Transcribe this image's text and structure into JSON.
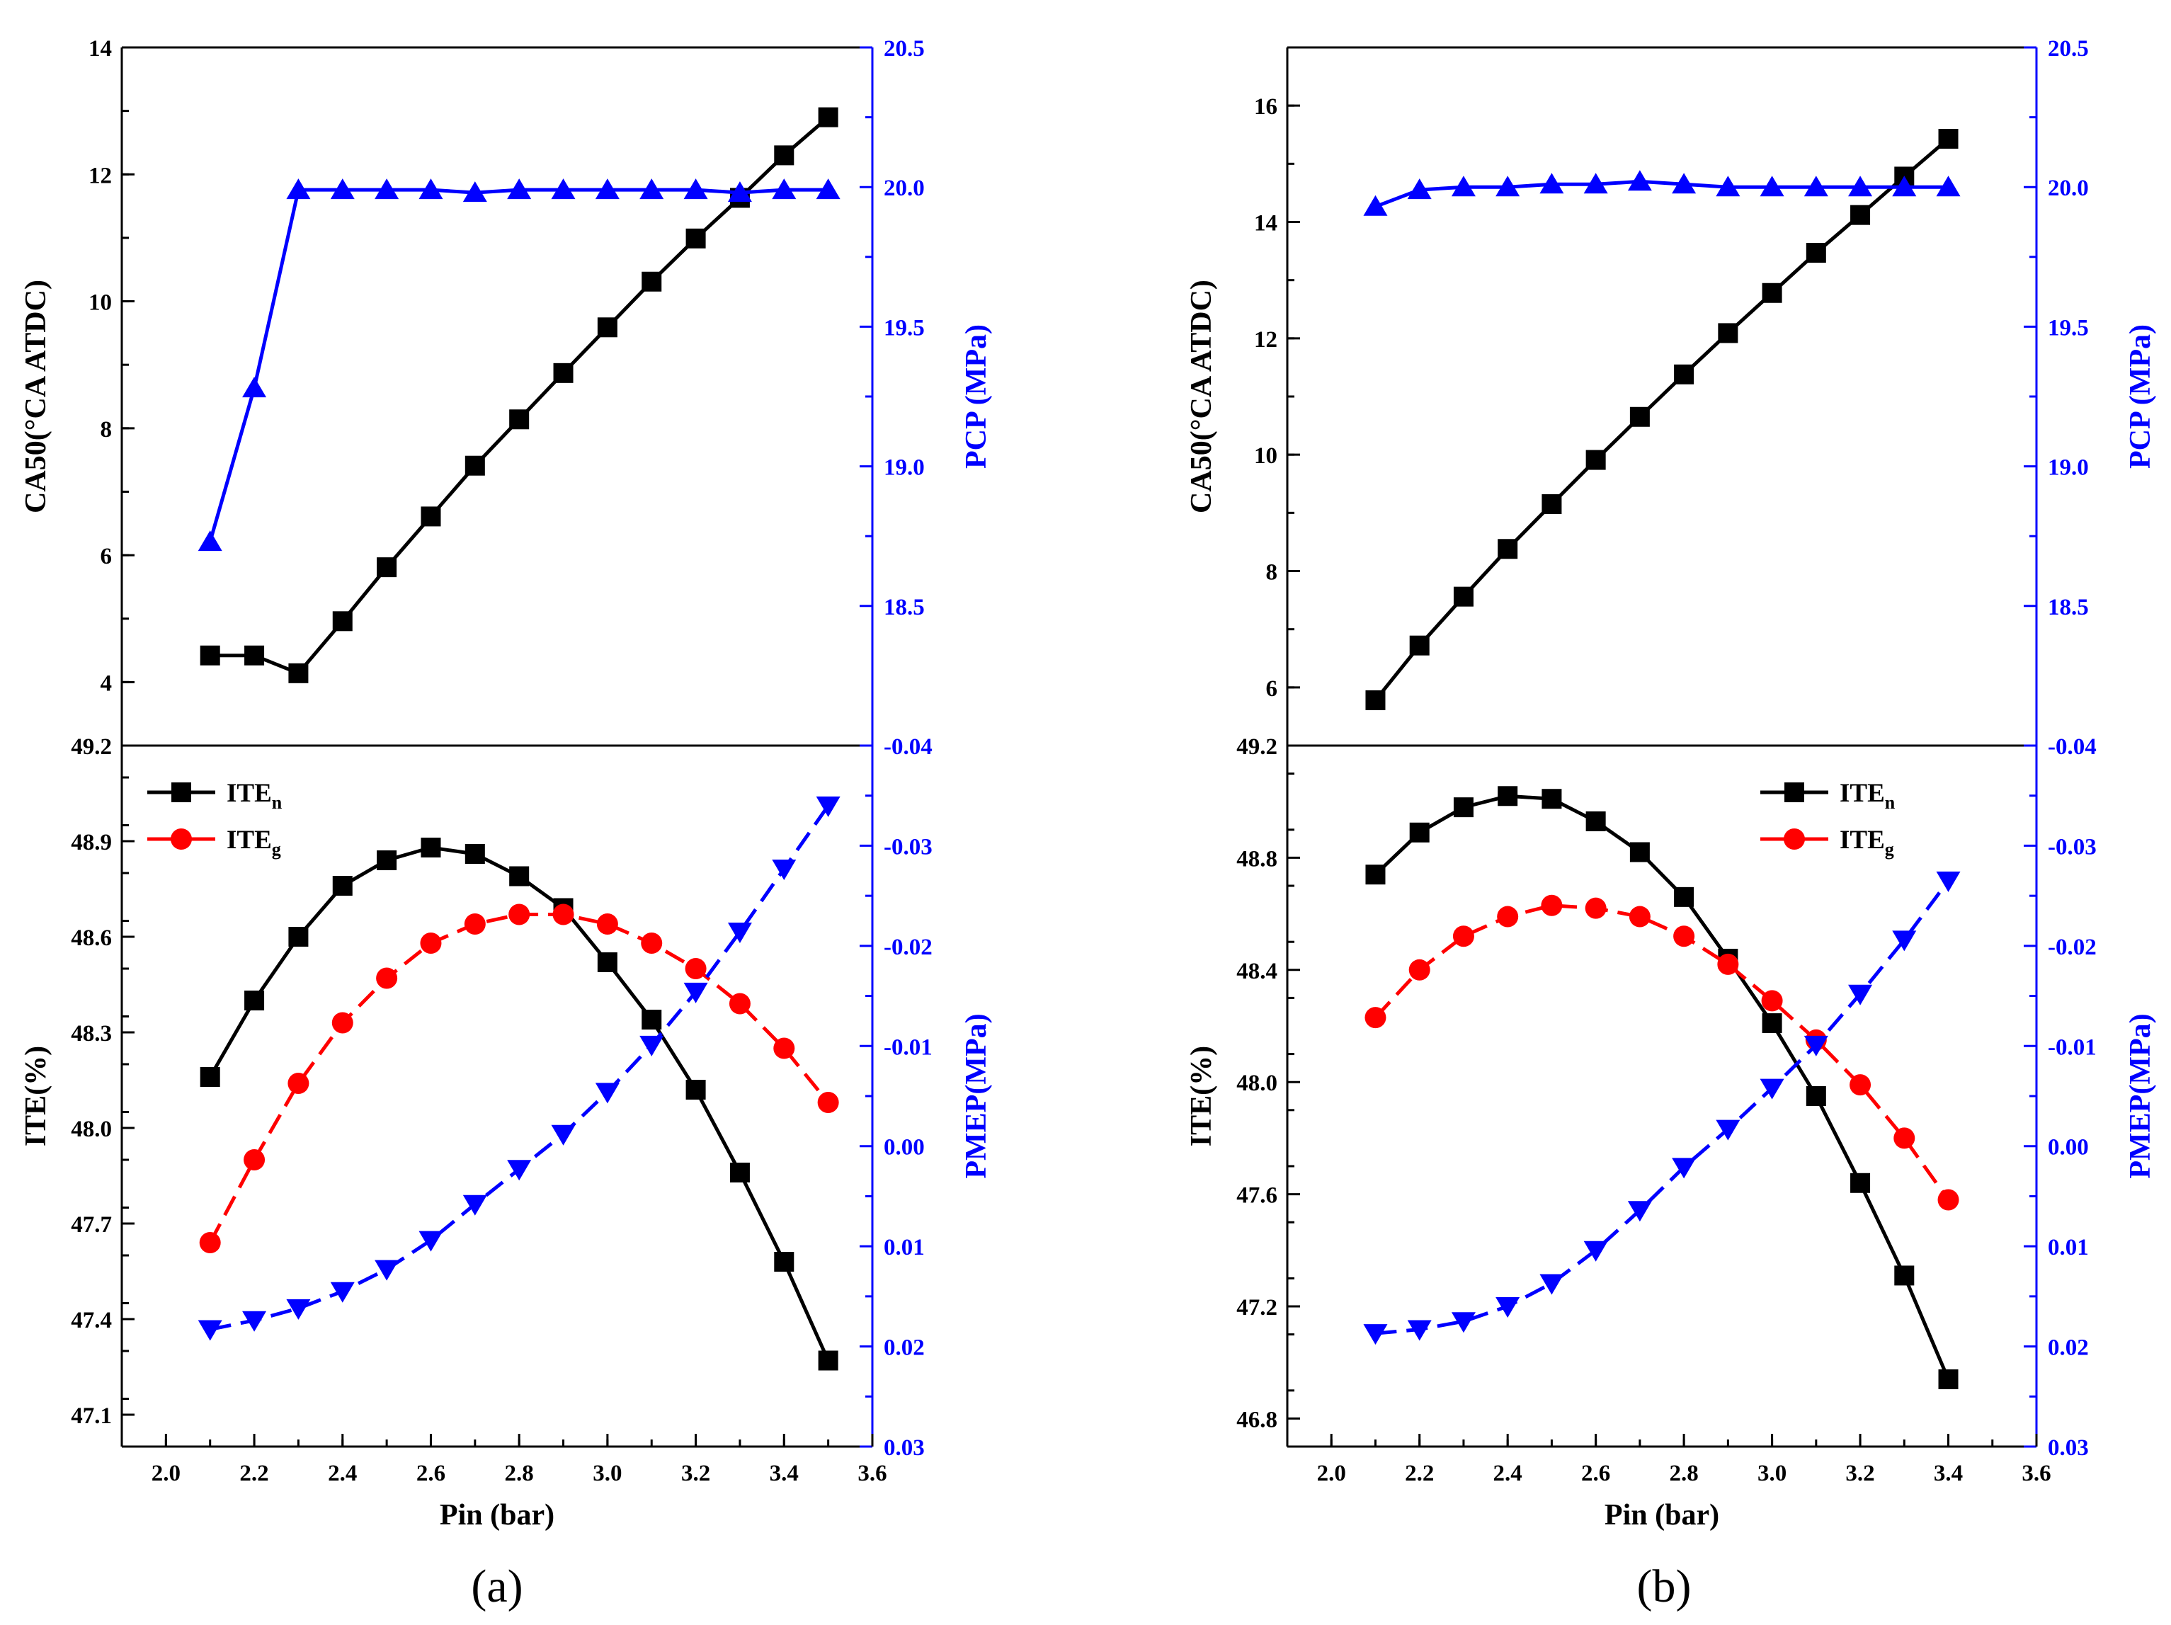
{
  "colors": {
    "black": "#000000",
    "red": "#ff0000",
    "blue": "#0000ff"
  },
  "chart_data": [
    {
      "panel": "a",
      "panel_label": "(a)",
      "type": "line",
      "xlabel": "Pin (bar)",
      "xlim": [
        1.9,
        3.6
      ],
      "xticks": [
        2.0,
        2.2,
        2.4,
        2.6,
        2.8,
        3.0,
        3.2,
        3.4,
        3.6
      ],
      "xtick_labels": [
        "2.0",
        "2.2",
        "2.4",
        "2.6",
        "2.8",
        "3.0",
        "3.2",
        "3.4",
        "3.6"
      ],
      "top": {
        "ylabel_left": "CA50(°CA ATDC)",
        "ylabel_right": "PCP (MPa)",
        "ylim_left": [
          3,
          14
        ],
        "yticks_left": [
          4,
          6,
          8,
          10,
          12,
          14
        ],
        "ytick_labels_left": [
          "4",
          "6",
          "8",
          "10",
          "12",
          "14"
        ],
        "ylim_right": [
          18.0,
          20.5
        ],
        "yticks_right": [
          18.5,
          19.0,
          19.5,
          20.0,
          20.5
        ],
        "ytick_labels_right": [
          "18.5",
          "19.0",
          "19.5",
          "20.0",
          "20.5"
        ],
        "series": [
          {
            "name": "CA50",
            "axis": "left",
            "color": "#000000",
            "marker": "square",
            "dash": "",
            "x": [
              2.1,
              2.2,
              2.3,
              2.4,
              2.5,
              2.6,
              2.7,
              2.8,
              2.9,
              3.0,
              3.1,
              3.2,
              3.3,
              3.4,
              3.5
            ],
            "y": [
              4.42,
              4.42,
              4.14,
              4.96,
              5.81,
              6.61,
              7.41,
              8.14,
              8.87,
              9.59,
              10.31,
              10.99,
              11.63,
              12.3,
              12.9
            ]
          },
          {
            "name": "PCP",
            "axis": "right",
            "color": "#0000ff",
            "marker": "triangle-up",
            "dash": "",
            "x": [
              2.1,
              2.2,
              2.3,
              2.4,
              2.5,
              2.6,
              2.7,
              2.8,
              2.9,
              3.0,
              3.1,
              3.2,
              3.3,
              3.4,
              3.5
            ],
            "y": [
              18.73,
              19.28,
              19.99,
              19.99,
              19.99,
              19.99,
              19.98,
              19.99,
              19.99,
              19.99,
              19.99,
              19.99,
              19.98,
              19.99,
              19.99
            ]
          }
        ]
      },
      "bottom": {
        "ylabel_left": "ITE(%)",
        "ylabel_right": "PMEP(MPa)",
        "ylim_left": [
          47.0,
          49.2
        ],
        "yticks_left": [
          47.1,
          47.4,
          47.7,
          48.0,
          48.3,
          48.6,
          48.9,
          49.2
        ],
        "ytick_labels_left": [
          "47.1",
          "47.4",
          "47.7",
          "48.0",
          "48.3",
          "48.6",
          "48.9",
          "49.2"
        ],
        "ylim_right": [
          0.03,
          -0.04
        ],
        "yticks_right": [
          0.03,
          0.02,
          0.01,
          0.0,
          -0.01,
          -0.02,
          -0.03,
          -0.04
        ],
        "ytick_labels_right": [
          "0.03",
          "0.02",
          "0.01",
          "0.00",
          "-0.01",
          "-0.02",
          "-0.03",
          "-0.04"
        ],
        "legend": [
          {
            "label": "ITE",
            "sub": "n",
            "color": "#000000",
            "marker": "square"
          },
          {
            "label": "ITE",
            "sub": "g",
            "color": "#ff0000",
            "marker": "circle"
          }
        ],
        "legend_position": "top-left",
        "series": [
          {
            "name": "ITEn",
            "axis": "left",
            "color": "#000000",
            "marker": "square",
            "dash": "",
            "x": [
              2.1,
              2.2,
              2.3,
              2.4,
              2.5,
              2.6,
              2.7,
              2.8,
              2.9,
              3.0,
              3.1,
              3.2,
              3.3,
              3.4,
              3.5
            ],
            "y": [
              48.16,
              48.4,
              48.6,
              48.76,
              48.84,
              48.88,
              48.86,
              48.79,
              48.69,
              48.52,
              48.34,
              48.12,
              47.86,
              47.58,
              47.27
            ]
          },
          {
            "name": "ITEg",
            "axis": "left",
            "color": "#ff0000",
            "marker": "circle",
            "dash": "30,14",
            "x": [
              2.1,
              2.2,
              2.3,
              2.4,
              2.5,
              2.6,
              2.7,
              2.8,
              2.9,
              3.0,
              3.1,
              3.2,
              3.3,
              3.4,
              3.5
            ],
            "y": [
              47.64,
              47.9,
              48.14,
              48.33,
              48.47,
              48.58,
              48.64,
              48.67,
              48.67,
              48.64,
              48.58,
              48.5,
              48.39,
              48.25,
              48.08
            ]
          },
          {
            "name": "PMEP",
            "axis": "right",
            "color": "#0000ff",
            "marker": "triangle-down",
            "dash": "30,14",
            "x": [
              2.1,
              2.2,
              2.3,
              2.4,
              2.5,
              2.6,
              2.7,
              2.8,
              2.9,
              3.0,
              3.1,
              3.2,
              3.3,
              3.4,
              3.5
            ],
            "y": [
              0.0183,
              0.0174,
              0.0162,
              0.0145,
              0.0123,
              0.0094,
              0.0058,
              0.0023,
              -0.0012,
              -0.0054,
              -0.0101,
              -0.0154,
              -0.0214,
              -0.0277,
              -0.034
            ]
          }
        ]
      }
    },
    {
      "panel": "b",
      "panel_label": "(b)",
      "type": "line",
      "xlabel": "Pin (bar)",
      "xlim": [
        1.9,
        3.6
      ],
      "xticks": [
        2.0,
        2.2,
        2.4,
        2.6,
        2.8,
        3.0,
        3.2,
        3.4,
        3.6
      ],
      "xtick_labels": [
        "2.0",
        "2.2",
        "2.4",
        "2.6",
        "2.8",
        "3.0",
        "3.2",
        "3.4",
        "3.6"
      ],
      "top": {
        "ylabel_left": "CA50(°CA ATDC)",
        "ylabel_right": "PCP (MPa)",
        "ylim_left": [
          5,
          17
        ],
        "yticks_left": [
          6,
          8,
          10,
          12,
          14,
          16
        ],
        "ytick_labels_left": [
          "6",
          "8",
          "10",
          "12",
          "14",
          "16"
        ],
        "ylim_right": [
          18.0,
          20.5
        ],
        "yticks_right": [
          18.5,
          19.0,
          19.5,
          20.0,
          20.5
        ],
        "ytick_labels_right": [
          "18.5",
          "19.0",
          "19.5",
          "20.0",
          "20.5"
        ],
        "series": [
          {
            "name": "CA50",
            "axis": "left",
            "color": "#000000",
            "marker": "square",
            "dash": "",
            "x": [
              2.1,
              2.2,
              2.3,
              2.4,
              2.5,
              2.6,
              2.7,
              2.8,
              2.9,
              3.0,
              3.1,
              3.2,
              3.3,
              3.4
            ],
            "y": [
              5.78,
              6.72,
              7.56,
              8.38,
              9.15,
              9.91,
              10.65,
              11.38,
              12.09,
              12.78,
              13.47,
              14.12,
              14.78,
              15.43
            ]
          },
          {
            "name": "PCP",
            "axis": "right",
            "color": "#0000ff",
            "marker": "triangle-up",
            "dash": "",
            "x": [
              2.1,
              2.2,
              2.3,
              2.4,
              2.5,
              2.6,
              2.7,
              2.8,
              2.9,
              3.0,
              3.1,
              3.2,
              3.3,
              3.4
            ],
            "y": [
              19.93,
              19.99,
              20.0,
              20.0,
              20.01,
              20.01,
              20.02,
              20.01,
              20.0,
              20.0,
              20.0,
              20.0,
              20.0,
              20.0
            ]
          }
        ]
      },
      "bottom": {
        "ylabel_left": "ITE(%)",
        "ylabel_right": "PMEP(MPa)",
        "ylim_left": [
          46.7,
          49.2
        ],
        "yticks_left": [
          46.8,
          47.2,
          47.6,
          48.0,
          48.4,
          48.8,
          49.2
        ],
        "ytick_labels_left": [
          "46.8",
          "47.2",
          "47.6",
          "48.0",
          "48.4",
          "48.8",
          "49.2"
        ],
        "ylim_right": [
          0.03,
          -0.04
        ],
        "yticks_right": [
          0.03,
          0.02,
          0.01,
          0.0,
          -0.01,
          -0.02,
          -0.03,
          -0.04
        ],
        "ytick_labels_right": [
          "0.03",
          "0.02",
          "0.01",
          "0.00",
          "-0.01",
          "-0.02",
          "-0.03",
          "-0.04"
        ],
        "legend": [
          {
            "label": "ITE",
            "sub": "n",
            "color": "#000000",
            "marker": "square"
          },
          {
            "label": "ITE",
            "sub": "g",
            "color": "#ff0000",
            "marker": "circle"
          }
        ],
        "legend_position": "top-right",
        "series": [
          {
            "name": "ITEn",
            "axis": "left",
            "color": "#000000",
            "marker": "square",
            "dash": "",
            "x": [
              2.1,
              2.2,
              2.3,
              2.4,
              2.5,
              2.6,
              2.7,
              2.8,
              2.9,
              3.0,
              3.1,
              3.2,
              3.3,
              3.4
            ],
            "y": [
              48.74,
              48.89,
              48.98,
              49.02,
              49.01,
              48.93,
              48.82,
              48.66,
              48.44,
              48.21,
              47.95,
              47.64,
              47.31,
              46.94
            ]
          },
          {
            "name": "ITEg",
            "axis": "left",
            "color": "#ff0000",
            "marker": "circle",
            "dash": "30,14",
            "x": [
              2.1,
              2.2,
              2.3,
              2.4,
              2.5,
              2.6,
              2.7,
              2.8,
              2.9,
              3.0,
              3.1,
              3.2,
              3.3,
              3.4
            ],
            "y": [
              48.23,
              48.4,
              48.52,
              48.59,
              48.63,
              48.62,
              48.59,
              48.52,
              48.42,
              48.29,
              48.15,
              47.99,
              47.8,
              47.58
            ]
          },
          {
            "name": "PMEP",
            "axis": "right",
            "color": "#0000ff",
            "marker": "triangle-down",
            "dash": "30,14",
            "x": [
              2.1,
              2.2,
              2.3,
              2.4,
              2.5,
              2.6,
              2.7,
              2.8,
              2.9,
              3.0,
              3.1,
              3.2,
              3.3,
              3.4
            ],
            "y": [
              0.0187,
              0.0183,
              0.0175,
              0.016,
              0.0137,
              0.0104,
              0.0064,
              0.0021,
              -0.0017,
              -0.0058,
              -0.0101,
              -0.0152,
              -0.0206,
              -0.0265
            ]
          }
        ]
      }
    }
  ]
}
